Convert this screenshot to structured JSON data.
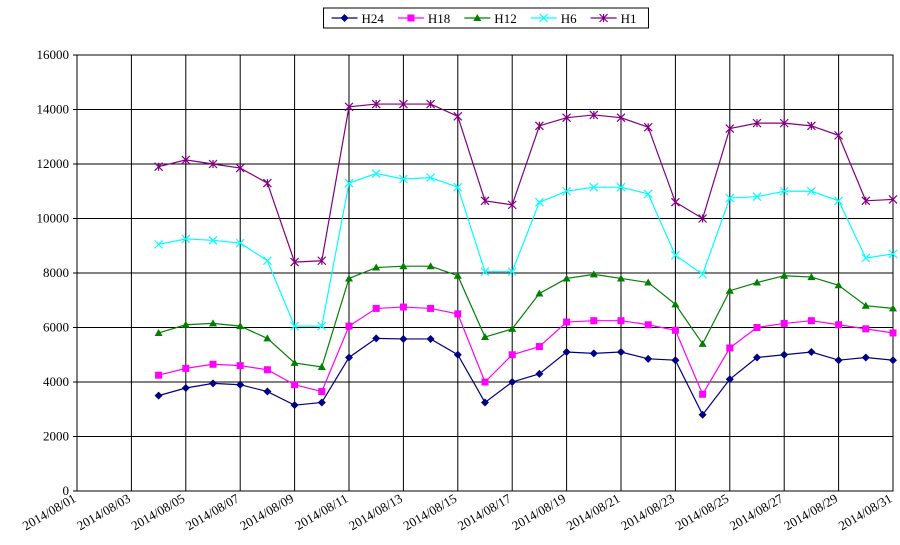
{
  "chart_data": {
    "type": "line",
    "categories": [
      "2014/08/01",
      null,
      "2014/08/03",
      null,
      "2014/08/05",
      null,
      "2014/08/07",
      null,
      "2014/08/09",
      null,
      "2014/08/11",
      null,
      "2014/08/13",
      null,
      "2014/08/15",
      null,
      "2014/08/17",
      null,
      "2014/08/19",
      null,
      "2014/08/21",
      null,
      "2014/08/23",
      null,
      "2014/08/25",
      null,
      "2014/08/27",
      null,
      "2014/08/29",
      null,
      "2014/08/31"
    ],
    "ylim": [
      0,
      16000
    ],
    "yticks": [
      0,
      2000,
      4000,
      6000,
      8000,
      10000,
      12000,
      14000,
      16000
    ],
    "grid": true,
    "legend": "top",
    "series": [
      {
        "name": "H24",
        "color": "#000080",
        "marker": "diamond",
        "values": [
          null,
          null,
          null,
          3500,
          3780,
          3950,
          3900,
          3650,
          3150,
          3250,
          4900,
          5600,
          5580,
          5580,
          5000,
          3250,
          4000,
          4300,
          5100,
          5050,
          5100,
          4850,
          4800,
          2800,
          4100,
          4900,
          5000,
          5100,
          4800,
          4900,
          4800
        ]
      },
      {
        "name": "H18",
        "color": "#ff00ff",
        "marker": "square",
        "values": [
          null,
          null,
          null,
          4250,
          4500,
          4650,
          4600,
          4450,
          3900,
          3650,
          6050,
          6700,
          6750,
          6700,
          6500,
          4000,
          5000,
          5300,
          6200,
          6250,
          6250,
          6100,
          5900,
          3550,
          5250,
          6000,
          6150,
          6250,
          6100,
          5950,
          5800
        ]
      },
      {
        "name": "H12",
        "color": "#008000",
        "marker": "triangle",
        "values": [
          null,
          null,
          null,
          5800,
          6100,
          6150,
          6050,
          5600,
          4700,
          4550,
          7800,
          8200,
          8250,
          8250,
          7900,
          5650,
          5950,
          7250,
          7800,
          7950,
          7800,
          7650,
          6850,
          5400,
          7350,
          7650,
          7900,
          7850,
          7550,
          6800,
          6700
        ]
      },
      {
        "name": "H6",
        "color": "#00ffff",
        "marker": "x",
        "values": [
          null,
          null,
          null,
          9050,
          9250,
          9200,
          9100,
          8450,
          6050,
          6050,
          11300,
          11650,
          11450,
          11500,
          11150,
          8050,
          8050,
          10600,
          11000,
          11150,
          11150,
          10900,
          8650,
          7950,
          10750,
          10800,
          11000,
          11000,
          10650,
          8550,
          8700
        ]
      },
      {
        "name": "H1",
        "color": "#800080",
        "marker": "star",
        "values": [
          null,
          null,
          null,
          11900,
          12150,
          12000,
          11850,
          11300,
          8400,
          8450,
          14100,
          14200,
          14200,
          14200,
          13750,
          10650,
          10500,
          13400,
          13700,
          13800,
          13700,
          13350,
          10600,
          10000,
          13300,
          13500,
          13500,
          13400,
          13050,
          10650,
          10700
        ]
      }
    ]
  }
}
